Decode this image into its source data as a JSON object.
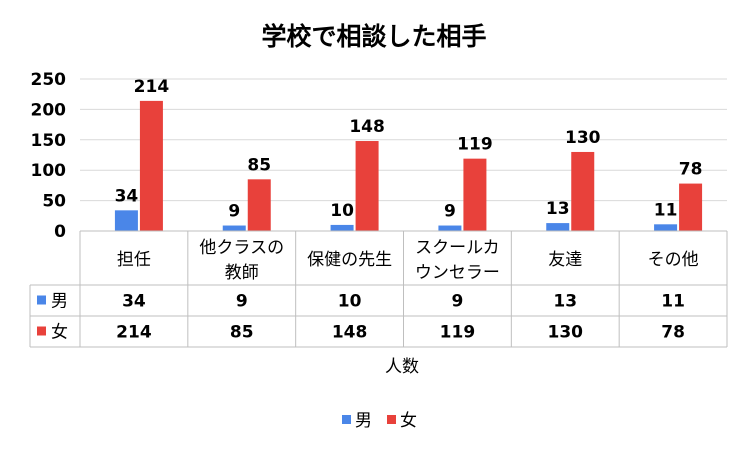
{
  "chart_data": {
    "type": "bar",
    "title": "学校で相談した相手",
    "xlabel": "人数",
    "ylabel": "",
    "ylim": [
      0,
      250
    ],
    "yticks": [
      0,
      50,
      100,
      150,
      200,
      250
    ],
    "grid": true,
    "categories": [
      [
        "担任"
      ],
      [
        "他クラスの",
        "教師"
      ],
      [
        "保健の先生"
      ],
      [
        "スクールカ",
        "ウンセラー"
      ],
      [
        "友達"
      ],
      [
        "その他"
      ]
    ],
    "series": [
      {
        "name": "男",
        "color": "#4a86e8",
        "values": [
          34,
          9,
          10,
          9,
          13,
          11
        ]
      },
      {
        "name": "女",
        "color": "#e8413b",
        "values": [
          214,
          85,
          148,
          119,
          130,
          78
        ]
      }
    ],
    "data_table": true,
    "legend_position": "bottom"
  }
}
